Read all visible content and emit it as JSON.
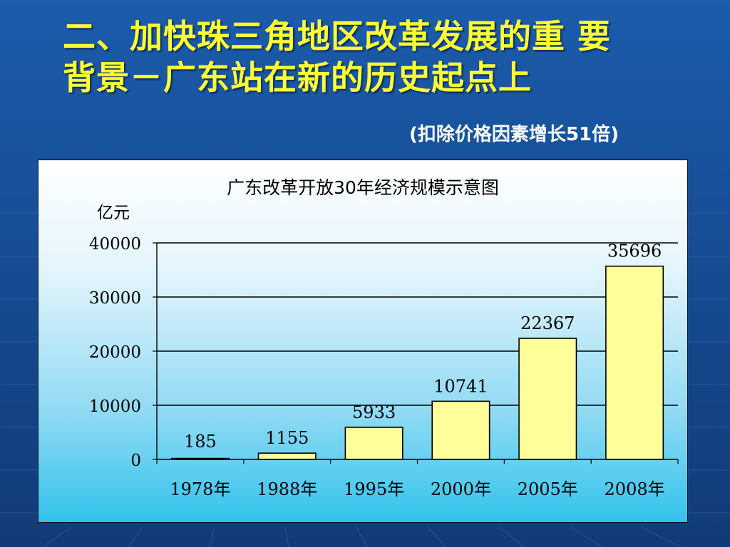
{
  "slide": {
    "title_line1": "二、加快珠三角地区改革发展的重 要",
    "title_line2": "背景－广东站在新的历史起点上",
    "subtitle": "(扣除价格因素增长51倍)",
    "background_color": "#1a4f9a",
    "title_color": "#ffff33"
  },
  "chart_data": {
    "type": "bar",
    "title": "广东改革开放30年经济规模示意图",
    "unit_label": "亿元",
    "categories": [
      "1978年",
      "1988年",
      "1995年",
      "2000年",
      "2005年",
      "2008年"
    ],
    "values": [
      185,
      1155,
      5933,
      10741,
      22367,
      35696
    ],
    "data_labels": [
      "185",
      "1155",
      "5933",
      "10741",
      "22367",
      "35696"
    ],
    "yticks": [
      0,
      10000,
      20000,
      30000,
      40000
    ],
    "ytick_labels": [
      "0",
      "10000",
      "20000",
      "30000",
      "40000"
    ],
    "ylim": [
      0,
      40000
    ],
    "grid": true,
    "bar_color": "#ffff99",
    "bar_stroke": "#000000"
  }
}
